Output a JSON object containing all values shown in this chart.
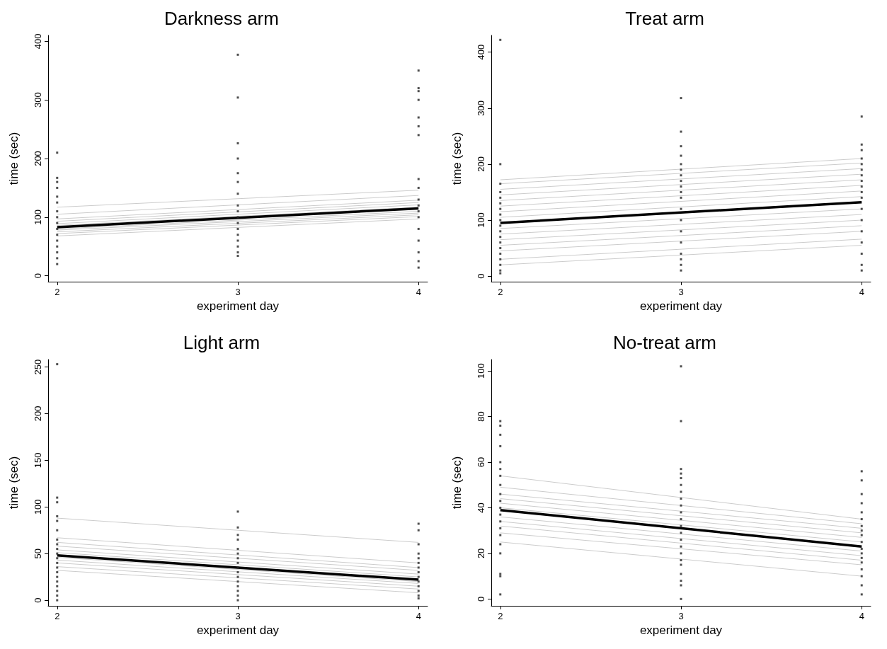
{
  "chart_data": [
    {
      "type": "line",
      "title": "Darkness arm",
      "xlabel": "experiment day",
      "ylabel": "time (sec)",
      "xlim": [
        1.95,
        4.05
      ],
      "xticks": [
        2,
        3,
        4
      ],
      "ylim": [
        -10,
        410
      ],
      "yticks": [
        0,
        100,
        200,
        300,
        400
      ],
      "grid": false,
      "series": [
        {
          "color": "#cccccc",
          "x": [
            2,
            4
          ],
          "values": [
            68,
            97
          ]
        },
        {
          "color": "#cccccc",
          "x": [
            2,
            4
          ],
          "values": [
            72,
            101
          ]
        },
        {
          "color": "#cccccc",
          "x": [
            2,
            4
          ],
          "values": [
            75,
            104
          ]
        },
        {
          "color": "#cccccc",
          "x": [
            2,
            4
          ],
          "values": [
            78,
            107
          ]
        },
        {
          "color": "#cccccc",
          "x": [
            2,
            4
          ],
          "values": [
            80,
            110
          ]
        },
        {
          "color": "#cccccc",
          "x": [
            2,
            4
          ],
          "values": [
            86,
            117
          ]
        },
        {
          "color": "#cccccc",
          "x": [
            2,
            4
          ],
          "values": [
            89,
            121
          ]
        },
        {
          "color": "#cccccc",
          "x": [
            2,
            4
          ],
          "values": [
            93,
            125
          ]
        },
        {
          "color": "#cccccc",
          "x": [
            2,
            4
          ],
          "values": [
            97,
            129
          ]
        },
        {
          "color": "#cccccc",
          "x": [
            2,
            4
          ],
          "values": [
            105,
            137
          ]
        },
        {
          "color": "#cccccc",
          "x": [
            2,
            4
          ],
          "values": [
            117,
            146
          ]
        },
        {
          "color": "#000000",
          "x": [
            2,
            4
          ],
          "values": [
            83,
            115
          ]
        },
        {
          "type": "scatter",
          "marker": "square",
          "color": "#222222",
          "x": [
            2,
            2,
            2,
            2,
            2,
            2,
            2,
            2,
            2,
            2,
            2,
            2,
            2,
            2,
            2,
            2,
            3,
            3,
            3,
            3,
            3,
            3,
            3,
            3,
            3,
            3,
            3,
            3,
            3,
            3,
            3,
            3,
            3,
            4,
            4,
            4,
            4,
            4,
            4,
            4,
            4,
            4,
            4,
            4,
            4,
            4,
            4,
            4,
            4,
            4,
            4
          ],
          "values": [
            210,
            167,
            160,
            150,
            135,
            125,
            110,
            100,
            90,
            80,
            70,
            60,
            50,
            40,
            30,
            20,
            377,
            304,
            226,
            200,
            175,
            160,
            140,
            120,
            110,
            100,
            90,
            80,
            70,
            60,
            50,
            40,
            34,
            350,
            320,
            315,
            300,
            270,
            255,
            240,
            165,
            150,
            130,
            120,
            110,
            100,
            80,
            60,
            40,
            25,
            14
          ]
        }
      ]
    },
    {
      "type": "line",
      "title": "Treat arm",
      "xlabel": "experiment day",
      "ylabel": "time (sec)",
      "xlim": [
        1.95,
        4.05
      ],
      "xticks": [
        2,
        3,
        4
      ],
      "ylim": [
        -10,
        430
      ],
      "yticks": [
        0,
        100,
        200,
        300,
        400
      ],
      "grid": false,
      "series": [
        {
          "color": "#cccccc",
          "x": [
            2,
            4
          ],
          "values": [
            20,
            55
          ]
        },
        {
          "color": "#cccccc",
          "x": [
            2,
            4
          ],
          "values": [
            30,
            66
          ]
        },
        {
          "color": "#cccccc",
          "x": [
            2,
            4
          ],
          "values": [
            45,
            80
          ]
        },
        {
          "color": "#cccccc",
          "x": [
            2,
            4
          ],
          "values": [
            55,
            90
          ]
        },
        {
          "color": "#cccccc",
          "x": [
            2,
            4
          ],
          "values": [
            65,
            100
          ]
        },
        {
          "color": "#cccccc",
          "x": [
            2,
            4
          ],
          "values": [
            75,
            110
          ]
        },
        {
          "color": "#cccccc",
          "x": [
            2,
            4
          ],
          "values": [
            85,
            120
          ]
        },
        {
          "color": "#cccccc",
          "x": [
            2,
            4
          ],
          "values": [
            105,
            142
          ]
        },
        {
          "color": "#cccccc",
          "x": [
            2,
            4
          ],
          "values": [
            115,
            152
          ]
        },
        {
          "color": "#cccccc",
          "x": [
            2,
            4
          ],
          "values": [
            125,
            162
          ]
        },
        {
          "color": "#cccccc",
          "x": [
            2,
            4
          ],
          "values": [
            135,
            172
          ]
        },
        {
          "color": "#cccccc",
          "x": [
            2,
            4
          ],
          "values": [
            145,
            182
          ]
        },
        {
          "color": "#cccccc",
          "x": [
            2,
            4
          ],
          "values": [
            155,
            192
          ]
        },
        {
          "color": "#cccccc",
          "x": [
            2,
            4
          ],
          "values": [
            165,
            202
          ]
        },
        {
          "color": "#cccccc",
          "x": [
            2,
            4
          ],
          "values": [
            172,
            210
          ]
        },
        {
          "color": "#000000",
          "x": [
            2,
            4
          ],
          "values": [
            95,
            132
          ]
        },
        {
          "type": "scatter",
          "marker": "square",
          "color": "#222222",
          "x": [
            2,
            2,
            2,
            2,
            2,
            2,
            2,
            2,
            2,
            2,
            2,
            2,
            2,
            2,
            2,
            2,
            2,
            2,
            2,
            3,
            3,
            3,
            3,
            3,
            3,
            3,
            3,
            3,
            3,
            3,
            3,
            3,
            3,
            3,
            3,
            3,
            3,
            3,
            4,
            4,
            4,
            4,
            4,
            4,
            4,
            4,
            4,
            4,
            4,
            4,
            4,
            4,
            4,
            4,
            4,
            4
          ],
          "values": [
            422,
            200,
            165,
            150,
            140,
            130,
            120,
            110,
            100,
            90,
            80,
            70,
            60,
            50,
            40,
            30,
            20,
            10,
            5,
            318,
            258,
            232,
            215,
            200,
            190,
            180,
            170,
            160,
            150,
            140,
            120,
            100,
            80,
            60,
            40,
            30,
            20,
            10,
            285,
            235,
            225,
            210,
            200,
            190,
            180,
            170,
            160,
            150,
            140,
            120,
            100,
            80,
            60,
            40,
            20,
            10
          ]
        }
      ]
    },
    {
      "type": "line",
      "title": "Light arm",
      "xlabel": "experiment day",
      "ylabel": "time (sec)",
      "xlim": [
        1.95,
        4.05
      ],
      "xticks": [
        2,
        3,
        4
      ],
      "ylim": [
        -6,
        258
      ],
      "yticks": [
        0,
        50,
        100,
        150,
        200,
        250
      ],
      "grid": false,
      "series": [
        {
          "color": "#cccccc",
          "x": [
            2,
            4
          ],
          "values": [
            32,
            8
          ]
        },
        {
          "color": "#cccccc",
          "x": [
            2,
            4
          ],
          "values": [
            36,
            12
          ]
        },
        {
          "color": "#cccccc",
          "x": [
            2,
            4
          ],
          "values": [
            40,
            15
          ]
        },
        {
          "color": "#cccccc",
          "x": [
            2,
            4
          ],
          "values": [
            43,
            18
          ]
        },
        {
          "color": "#cccccc",
          "x": [
            2,
            4
          ],
          "values": [
            46,
            20
          ]
        },
        {
          "color": "#cccccc",
          "x": [
            2,
            4
          ],
          "values": [
            51,
            25
          ]
        },
        {
          "color": "#cccccc",
          "x": [
            2,
            4
          ],
          "values": [
            54,
            28
          ]
        },
        {
          "color": "#cccccc",
          "x": [
            2,
            4
          ],
          "values": [
            58,
            32
          ]
        },
        {
          "color": "#cccccc",
          "x": [
            2,
            4
          ],
          "values": [
            62,
            35
          ]
        },
        {
          "color": "#cccccc",
          "x": [
            2,
            4
          ],
          "values": [
            67,
            40
          ]
        },
        {
          "color": "#cccccc",
          "x": [
            2,
            4
          ],
          "values": [
            88,
            62
          ]
        },
        {
          "color": "#000000",
          "x": [
            2,
            4
          ],
          "values": [
            48,
            22
          ]
        },
        {
          "type": "scatter",
          "marker": "square",
          "color": "#222222",
          "x": [
            2,
            2,
            2,
            2,
            2,
            2,
            2,
            2,
            2,
            2,
            2,
            2,
            2,
            2,
            2,
            2,
            2,
            2,
            2,
            2,
            3,
            3,
            3,
            3,
            3,
            3,
            3,
            3,
            3,
            3,
            3,
            3,
            3,
            3,
            3,
            3,
            4,
            4,
            4,
            4,
            4,
            4,
            4,
            4,
            4,
            4,
            4,
            4,
            4,
            4
          ],
          "values": [
            253,
            110,
            105,
            90,
            85,
            75,
            65,
            60,
            55,
            50,
            45,
            40,
            35,
            30,
            25,
            20,
            15,
            10,
            5,
            0,
            95,
            78,
            70,
            65,
            55,
            50,
            45,
            40,
            35,
            30,
            25,
            20,
            15,
            10,
            5,
            0,
            82,
            75,
            60,
            50,
            45,
            40,
            35,
            30,
            25,
            20,
            15,
            10,
            5,
            2
          ]
        }
      ]
    },
    {
      "type": "line",
      "title": "No-treat arm",
      "xlabel": "experiment day",
      "ylabel": "time (sec)",
      "xlim": [
        1.95,
        4.05
      ],
      "xticks": [
        2,
        3,
        4
      ],
      "ylim": [
        -3,
        105
      ],
      "yticks": [
        0,
        20,
        40,
        60,
        80,
        100
      ],
      "grid": false,
      "series": [
        {
          "color": "#cccccc",
          "x": [
            2,
            4
          ],
          "values": [
            25,
            10
          ]
        },
        {
          "color": "#cccccc",
          "x": [
            2,
            4
          ],
          "values": [
            29,
            15
          ]
        },
        {
          "color": "#cccccc",
          "x": [
            2,
            4
          ],
          "values": [
            32,
            17
          ]
        },
        {
          "color": "#cccccc",
          "x": [
            2,
            4
          ],
          "values": [
            34,
            19
          ]
        },
        {
          "color": "#cccccc",
          "x": [
            2,
            4
          ],
          "values": [
            36,
            21
          ]
        },
        {
          "color": "#cccccc",
          "x": [
            2,
            4
          ],
          "values": [
            40,
            25
          ]
        },
        {
          "color": "#cccccc",
          "x": [
            2,
            4
          ],
          "values": [
            42,
            27
          ]
        },
        {
          "color": "#cccccc",
          "x": [
            2,
            4
          ],
          "values": [
            44,
            29
          ]
        },
        {
          "color": "#cccccc",
          "x": [
            2,
            4
          ],
          "values": [
            46,
            31
          ]
        },
        {
          "color": "#cccccc",
          "x": [
            2,
            4
          ],
          "values": [
            49,
            33
          ]
        },
        {
          "color": "#cccccc",
          "x": [
            2,
            4
          ],
          "values": [
            54,
            35
          ]
        },
        {
          "color": "#000000",
          "x": [
            2,
            4
          ],
          "values": [
            39,
            23
          ]
        },
        {
          "type": "scatter",
          "marker": "square",
          "color": "#222222",
          "x": [
            2,
            2,
            2,
            2,
            2,
            2,
            2,
            2,
            2,
            2,
            2,
            2,
            2,
            2,
            2,
            2,
            2,
            2,
            2,
            2,
            3,
            3,
            3,
            3,
            3,
            3,
            3,
            3,
            3,
            3,
            3,
            3,
            3,
            3,
            3,
            3,
            3,
            3,
            3,
            3,
            3,
            3,
            4,
            4,
            4,
            4,
            4,
            4,
            4,
            4,
            4,
            4,
            4,
            4,
            4,
            4,
            4,
            4,
            4,
            4
          ],
          "values": [
            78,
            76,
            72,
            67,
            60,
            57,
            54,
            50,
            46,
            43,
            40,
            37,
            34,
            31,
            28,
            24,
            20,
            11,
            10,
            2,
            102,
            78,
            57,
            55,
            53,
            50,
            47,
            44,
            41,
            38,
            35,
            32,
            29,
            26,
            23,
            20,
            17,
            15,
            11,
            8,
            6,
            0,
            56,
            52,
            46,
            42,
            38,
            35,
            32,
            30,
            28,
            25,
            22,
            20,
            18,
            16,
            13,
            10,
            6,
            2
          ]
        }
      ]
    }
  ]
}
